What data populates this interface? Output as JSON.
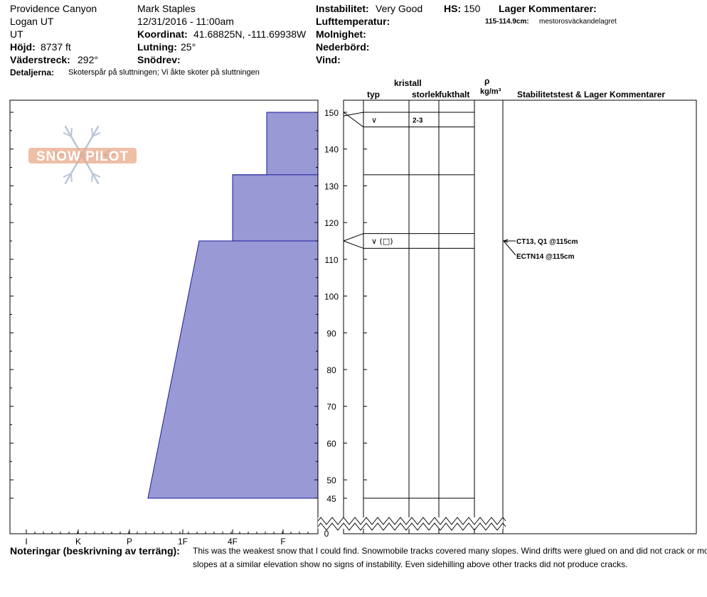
{
  "header": {
    "location": "Providence Canyon",
    "region": "Logan UT",
    "state": "UT",
    "elevation_label": "Höjd:",
    "elevation_value": "8737 ft",
    "aspect_label": "Väderstreck:",
    "aspect_value": "292°",
    "details_label": "Detaljerna:",
    "details_value": "Skoterspår på sluttningen; Vi åkte skoter på sluttningen",
    "observer": "Mark Staples",
    "datetime": "12/31/2016 - 11:00am",
    "coord_label": "Koordinat:",
    "coord_value": "41.68825N, -111.69938W",
    "slope_label": "Lutning:",
    "slope_value": "25°",
    "drift_label": "Snödrev:",
    "instability_label": "Instabilitet:",
    "instability_value": "Very Good",
    "hs_label": "HS:",
    "hs_value": "150",
    "airtemp_label": "Lufttemperatur:",
    "clouds_label": "Molnighet:",
    "precip_label": "Nederbörd:",
    "wind_label": "Vind:",
    "layer_comments_label": "Lager Kommentarer:",
    "layer_comment_range": "115-114.9cm:",
    "layer_comment_text": "mestorosväckandelagret"
  },
  "columns": {
    "crystal": "kristall",
    "type": "typ",
    "size": "storlek",
    "moisture": "fukthalt",
    "rho": "ρ",
    "density_unit": "kg/m³",
    "stability": "Stabilitetstest & Lager Kommentarer"
  },
  "watermark": "SNOW PILOT",
  "notes": {
    "label": "Noteringar (beskrivning av terräng):",
    "line1": "This was the weakest snow that I could find. Snowmobile tracks covered many slopes. Wind drifts were glued on and did not crack or move. Other",
    "line2": "slopes at a similar elevation show no signs of instability. Even sidehilling above other tracks did not produce cracks."
  },
  "tests": [
    "CT13, Q1 @115cm",
    "ECTN14 @115cm"
  ],
  "colors": {
    "hardness_fill": "#9999d6",
    "hardness_stroke": "#1a1a9c",
    "watermark": "#e8a888"
  },
  "chart_data": {
    "type": "area",
    "title": "",
    "xlabel": "",
    "ylabel": "",
    "ylim": [
      45,
      150
    ],
    "y_ticks": [
      150,
      140,
      130,
      120,
      110,
      100,
      90,
      80,
      70,
      60,
      50,
      45
    ],
    "y_zero_label": "0",
    "hardness_ticks": [
      "I",
      "K",
      "P",
      "1F",
      "4F",
      "F"
    ],
    "hardness_scale_note": "hardness index increases toward the left edge; F at right",
    "layers": [
      {
        "top": 150,
        "bottom": 133,
        "hardness_top": "4F+",
        "hardness_bottom": "4F+"
      },
      {
        "top": 133,
        "bottom": 115,
        "hardness_top": "1F+",
        "hardness_bottom": "1F+"
      },
      {
        "top": 115,
        "bottom": 45,
        "hardness_top": "1F-",
        "hardness_bottom": "P"
      }
    ],
    "layer_lines_cm": [
      150,
      146,
      133,
      117,
      113,
      45
    ],
    "grain_rows": [
      {
        "height": 148,
        "type": "∨",
        "size": "2-3"
      },
      {
        "height": 115,
        "type": "∨ (□)",
        "size": ""
      }
    ],
    "test_height_cm": 115
  }
}
